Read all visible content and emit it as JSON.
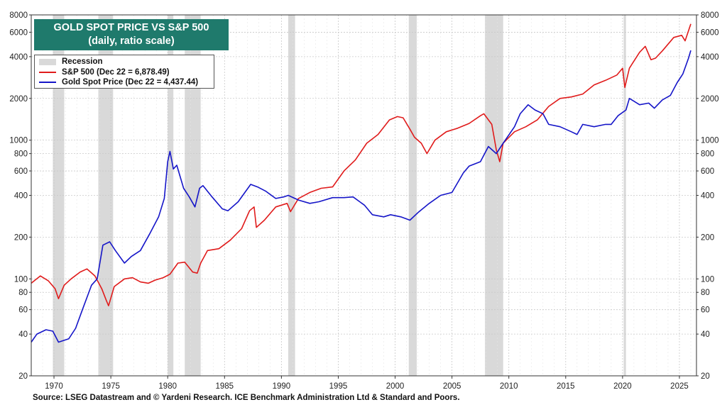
{
  "header": {
    "title": "GOLD SPOT PRICE VS S&P 500",
    "subtitle": "(daily, ratio scale)"
  },
  "legend": {
    "recession": "Recession",
    "sp500": "S&P 500 (Dec 22 = 6,878.49)",
    "gold": "Gold Spot Price (Dec 22 = 4,437.44)"
  },
  "footer": {
    "source": "Source: LSEG Datastream and © Yardeni Research. ICE Benchmark Administration Ltd & Standard and Poors."
  },
  "colors": {
    "sp500": "#e01b1b",
    "gold": "#1515c8",
    "recession": "#d9d9d9",
    "title_bg": "#1f7a6c"
  },
  "chart_data": {
    "type": "line",
    "title": "GOLD SPOT PRICE VS S&P 500",
    "subtitle": "(daily, ratio scale)",
    "y_scale": "log",
    "xlim": [
      1968,
      2026.5
    ],
    "ylim": [
      20,
      8000
    ],
    "x_ticks": [
      1970,
      1975,
      1980,
      1985,
      1990,
      1995,
      2000,
      2005,
      2010,
      2015,
      2020,
      2025
    ],
    "x_tick_labels": [
      "1970",
      "1975",
      "1980",
      "1985",
      "1990",
      "1995",
      "2000",
      "2005",
      "2010",
      "2015",
      "2020",
      "2025"
    ],
    "y_ticks": [
      20,
      40,
      60,
      80,
      100,
      200,
      400,
      600,
      800,
      1000,
      2000,
      4000,
      6000,
      8000
    ],
    "y_tick_labels": [
      "20",
      "40",
      "60",
      "80",
      "100",
      "200",
      "400",
      "600",
      "800",
      "1000",
      "2000",
      "4000",
      "6000",
      "8000"
    ],
    "recessions": [
      [
        1969.9,
        1970.9
      ],
      [
        1973.9,
        1975.2
      ],
      [
        1980.0,
        1980.5
      ],
      [
        1981.5,
        1982.9
      ],
      [
        1990.6,
        1991.2
      ],
      [
        2001.2,
        2001.9
      ],
      [
        2007.9,
        2009.5
      ],
      [
        2020.1,
        2020.3
      ]
    ],
    "series": [
      {
        "name": "S&P 500",
        "x": [
          1968,
          1968.8,
          1969.5,
          1970.1,
          1970.4,
          1970.9,
          1971.5,
          1972.3,
          1972.9,
          1973.6,
          1974.2,
          1974.6,
          1974.8,
          1975.3,
          1976.2,
          1976.9,
          1977.6,
          1978.3,
          1978.9,
          1979.6,
          1980.2,
          1980.9,
          1981.5,
          1982.2,
          1982.6,
          1982.9,
          1983.5,
          1984.5,
          1985.5,
          1986.5,
          1987.2,
          1987.6,
          1987.8,
          1988.5,
          1989.5,
          1990.5,
          1990.8,
          1991.5,
          1992.5,
          1993.5,
          1994.5,
          1995.5,
          1996.5,
          1997.5,
          1998.5,
          1999.5,
          2000.2,
          2000.7,
          2001.3,
          2001.7,
          2002.3,
          2002.8,
          2003.5,
          2004.5,
          2005.5,
          2006.5,
          2007.5,
          2007.8,
          2008.5,
          2008.9,
          2009.2,
          2009.5,
          2010.5,
          2011.5,
          2012.5,
          2013.5,
          2014.5,
          2015.5,
          2016.5,
          2017.5,
          2018.5,
          2019.5,
          2020.0,
          2020.2,
          2020.6,
          2021.5,
          2022.0,
          2022.5,
          2022.9,
          2023.5,
          2024.5,
          2025.2,
          2025.5,
          2026.0
        ],
        "values": [
          93,
          105,
          97,
          85,
          72,
          90,
          100,
          112,
          118,
          105,
          85,
          70,
          64,
          88,
          100,
          102,
          95,
          93,
          98,
          102,
          108,
          130,
          132,
          112,
          110,
          130,
          160,
          165,
          190,
          230,
          310,
          330,
          235,
          265,
          330,
          350,
          305,
          380,
          420,
          450,
          460,
          600,
          720,
          950,
          1100,
          1400,
          1480,
          1450,
          1200,
          1050,
          950,
          800,
          1000,
          1150,
          1220,
          1320,
          1500,
          1550,
          1300,
          850,
          700,
          950,
          1150,
          1250,
          1400,
          1750,
          2000,
          2050,
          2150,
          2500,
          2700,
          2950,
          3300,
          2400,
          3300,
          4300,
          4750,
          3800,
          3900,
          4400,
          5500,
          5700,
          5200,
          6880
        ]
      },
      {
        "name": "Gold Spot Price",
        "x": [
          1968,
          1968.5,
          1969.3,
          1969.9,
          1970.4,
          1971.3,
          1971.9,
          1972.5,
          1973.3,
          1973.8,
          1974.3,
          1974.9,
          1975.4,
          1976.2,
          1976.8,
          1977.6,
          1978.4,
          1979.2,
          1979.7,
          1980.0,
          1980.2,
          1980.5,
          1980.8,
          1981.4,
          1981.9,
          1982.4,
          1982.8,
          1983.1,
          1983.9,
          1984.8,
          1985.3,
          1986.2,
          1987.3,
          1987.9,
          1988.6,
          1989.5,
          1990.2,
          1990.6,
          1991.5,
          1992.5,
          1993.3,
          1994.5,
          1995.5,
          1996.3,
          1997.3,
          1998.0,
          1999.0,
          1999.6,
          2000.5,
          2001.3,
          2002.0,
          2003.0,
          2004.0,
          2005.0,
          2006.0,
          2006.5,
          2007.5,
          2008.2,
          2008.9,
          2009.5,
          2010.5,
          2011.0,
          2011.7,
          2012.3,
          2013.0,
          2013.5,
          2014.5,
          2015.5,
          2016.0,
          2016.5,
          2017.5,
          2018.5,
          2019.0,
          2019.6,
          2020.3,
          2020.6,
          2021.5,
          2022.3,
          2022.8,
          2023.5,
          2024.2,
          2024.8,
          2025.3,
          2025.8,
          2026.0
        ],
        "values": [
          35,
          40,
          43,
          42,
          35,
          37,
          44,
          60,
          90,
          100,
          175,
          185,
          160,
          130,
          145,
          160,
          210,
          280,
          380,
          700,
          830,
          620,
          660,
          450,
          390,
          330,
          450,
          470,
          390,
          320,
          310,
          360,
          480,
          460,
          430,
          380,
          390,
          400,
          370,
          350,
          360,
          385,
          385,
          390,
          340,
          290,
          280,
          290,
          280,
          265,
          300,
          350,
          400,
          420,
          580,
          650,
          700,
          900,
          800,
          950,
          1250,
          1550,
          1800,
          1650,
          1550,
          1300,
          1250,
          1150,
          1100,
          1300,
          1250,
          1300,
          1300,
          1500,
          1650,
          2000,
          1800,
          1850,
          1700,
          1950,
          2100,
          2600,
          3000,
          3900,
          4437
        ]
      }
    ]
  }
}
